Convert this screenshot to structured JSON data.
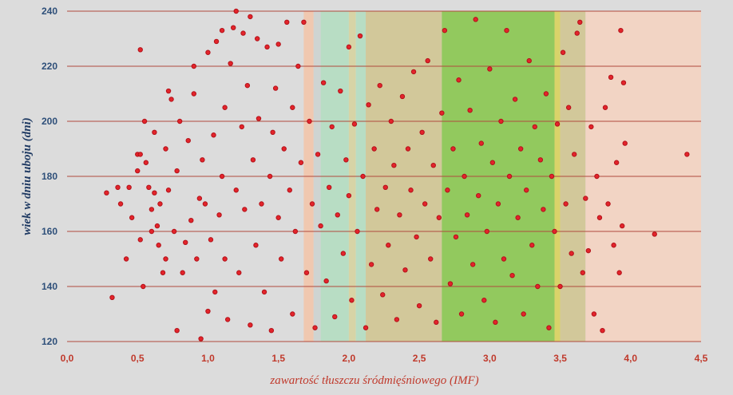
{
  "chart_data": {
    "type": "scatter",
    "title": "",
    "xlabel": "zawartość tłuszczu śródmięśniowego  (IMF)",
    "ylabel": "wiek w dniu uboju (dni)",
    "xlim": [
      0,
      4.5
    ],
    "ylim": [
      120,
      240
    ],
    "xticks": [
      0,
      0.5,
      1.0,
      1.5,
      2.0,
      2.5,
      3.0,
      3.5,
      4.0,
      4.5
    ],
    "xtick_labels": [
      "0,0",
      "0,5",
      "1,0",
      "1,5",
      "2,0",
      "2,5",
      "3,0",
      "3,5",
      "4,0",
      "4,5"
    ],
    "yticks": [
      120,
      140,
      160,
      180,
      200,
      220,
      240
    ],
    "ytick_labels": [
      "120",
      "140",
      "160",
      "180",
      "200",
      "220",
      "240"
    ],
    "grid": "horizontal",
    "colors": {
      "background": "#dcdcdc",
      "grid": "#b04a3e",
      "marker": "#e3242b",
      "marker_edge": "#b3121a",
      "axis_tick_y": "#2e4f79",
      "axis_tick_x": "#c0392b"
    },
    "background_bands": [
      {
        "x0": 1.68,
        "x1": 1.75,
        "color": "#f0c8b0"
      },
      {
        "x0": 1.75,
        "x1": 1.8,
        "color": "#cfd4d2"
      },
      {
        "x0": 1.8,
        "x1": 2.0,
        "color": "#b8ddc4"
      },
      {
        "x0": 2.0,
        "x1": 2.05,
        "color": "#d7d4a6"
      },
      {
        "x0": 2.05,
        "x1": 2.12,
        "color": "#b8ddc4"
      },
      {
        "x0": 2.12,
        "x1": 2.66,
        "color": "#d2c89a"
      },
      {
        "x0": 2.66,
        "x1": 3.46,
        "color": "#92c95e"
      },
      {
        "x0": 3.46,
        "x1": 3.5,
        "color": "#d9d36a"
      },
      {
        "x0": 3.5,
        "x1": 3.68,
        "color": "#d2c89a"
      },
      {
        "x0": 3.68,
        "x1": 4.5,
        "color": "#f2d4c4"
      }
    ],
    "series": [
      {
        "name": "IMF vs wiek",
        "marker": "circle",
        "points": [
          [
            0.28,
            174
          ],
          [
            0.32,
            136
          ],
          [
            0.36,
            176
          ],
          [
            0.38,
            170
          ],
          [
            0.42,
            150
          ],
          [
            0.44,
            176
          ],
          [
            0.46,
            165
          ],
          [
            0.5,
            188
          ],
          [
            0.5,
            182
          ],
          [
            0.52,
            188
          ],
          [
            0.52,
            226
          ],
          [
            0.52,
            157
          ],
          [
            0.54,
            140
          ],
          [
            0.55,
            200
          ],
          [
            0.56,
            185
          ],
          [
            0.58,
            176
          ],
          [
            0.6,
            160
          ],
          [
            0.6,
            168
          ],
          [
            0.62,
            174
          ],
          [
            0.62,
            196
          ],
          [
            0.64,
            162
          ],
          [
            0.65,
            155
          ],
          [
            0.66,
            170
          ],
          [
            0.68,
            145
          ],
          [
            0.7,
            150
          ],
          [
            0.7,
            190
          ],
          [
            0.72,
            211
          ],
          [
            0.72,
            175
          ],
          [
            0.74,
            208
          ],
          [
            0.76,
            160
          ],
          [
            0.78,
            124
          ],
          [
            0.78,
            182
          ],
          [
            0.8,
            200
          ],
          [
            0.82,
            145
          ],
          [
            0.84,
            156
          ],
          [
            0.86,
            193
          ],
          [
            0.88,
            164
          ],
          [
            0.9,
            210
          ],
          [
            0.9,
            220
          ],
          [
            0.92,
            150
          ],
          [
            0.94,
            172
          ],
          [
            0.95,
            121
          ],
          [
            0.96,
            186
          ],
          [
            0.98,
            170
          ],
          [
            1.0,
            225
          ],
          [
            1.0,
            131
          ],
          [
            1.02,
            157
          ],
          [
            1.04,
            195
          ],
          [
            1.05,
            138
          ],
          [
            1.06,
            229
          ],
          [
            1.08,
            166
          ],
          [
            1.1,
            233
          ],
          [
            1.1,
            180
          ],
          [
            1.12,
            150
          ],
          [
            1.12,
            205
          ],
          [
            1.14,
            128
          ],
          [
            1.16,
            221
          ],
          [
            1.18,
            234
          ],
          [
            1.2,
            240
          ],
          [
            1.2,
            175
          ],
          [
            1.22,
            145
          ],
          [
            1.24,
            198
          ],
          [
            1.25,
            232
          ],
          [
            1.26,
            168
          ],
          [
            1.28,
            213
          ],
          [
            1.3,
            238
          ],
          [
            1.3,
            126
          ],
          [
            1.32,
            186
          ],
          [
            1.34,
            155
          ],
          [
            1.35,
            230
          ],
          [
            1.36,
            201
          ],
          [
            1.38,
            170
          ],
          [
            1.4,
            138
          ],
          [
            1.42,
            227
          ],
          [
            1.44,
            180
          ],
          [
            1.45,
            124
          ],
          [
            1.46,
            196
          ],
          [
            1.48,
            212
          ],
          [
            1.5,
            165
          ],
          [
            1.5,
            228
          ],
          [
            1.52,
            150
          ],
          [
            1.54,
            190
          ],
          [
            1.56,
            236
          ],
          [
            1.58,
            175
          ],
          [
            1.6,
            205
          ],
          [
            1.6,
            130
          ],
          [
            1.62,
            160
          ],
          [
            1.64,
            220
          ],
          [
            1.66,
            185
          ],
          [
            1.68,
            236
          ],
          [
            1.7,
            145
          ],
          [
            1.72,
            200
          ],
          [
            1.74,
            170
          ],
          [
            1.76,
            125
          ],
          [
            1.78,
            188
          ],
          [
            1.8,
            162
          ],
          [
            1.82,
            214
          ],
          [
            1.84,
            142
          ],
          [
            1.86,
            176
          ],
          [
            1.88,
            198
          ],
          [
            1.9,
            129
          ],
          [
            1.92,
            166
          ],
          [
            1.94,
            211
          ],
          [
            1.96,
            152
          ],
          [
            1.98,
            186
          ],
          [
            2.0,
            227
          ],
          [
            2.0,
            173
          ],
          [
            2.02,
            135
          ],
          [
            2.04,
            199
          ],
          [
            2.06,
            160
          ],
          [
            2.08,
            231
          ],
          [
            2.1,
            180
          ],
          [
            2.12,
            125
          ],
          [
            2.14,
            206
          ],
          [
            2.16,
            148
          ],
          [
            2.18,
            190
          ],
          [
            2.2,
            168
          ],
          [
            2.22,
            213
          ],
          [
            2.24,
            137
          ],
          [
            2.26,
            176
          ],
          [
            2.28,
            155
          ],
          [
            2.3,
            200
          ],
          [
            2.32,
            184
          ],
          [
            2.34,
            128
          ],
          [
            2.36,
            166
          ],
          [
            2.38,
            209
          ],
          [
            2.4,
            146
          ],
          [
            2.42,
            190
          ],
          [
            2.44,
            175
          ],
          [
            2.46,
            218
          ],
          [
            2.48,
            158
          ],
          [
            2.5,
            133
          ],
          [
            2.52,
            196
          ],
          [
            2.54,
            170
          ],
          [
            2.56,
            222
          ],
          [
            2.58,
            150
          ],
          [
            2.6,
            184
          ],
          [
            2.62,
            127
          ],
          [
            2.64,
            165
          ],
          [
            2.66,
            203
          ],
          [
            2.68,
            233
          ],
          [
            2.7,
            175
          ],
          [
            2.72,
            141
          ],
          [
            2.74,
            190
          ],
          [
            2.76,
            158
          ],
          [
            2.78,
            215
          ],
          [
            2.8,
            130
          ],
          [
            2.82,
            180
          ],
          [
            2.84,
            166
          ],
          [
            2.86,
            204
          ],
          [
            2.88,
            148
          ],
          [
            2.9,
            237
          ],
          [
            2.92,
            173
          ],
          [
            2.94,
            192
          ],
          [
            2.96,
            135
          ],
          [
            2.98,
            160
          ],
          [
            3.0,
            219
          ],
          [
            3.02,
            185
          ],
          [
            3.04,
            127
          ],
          [
            3.06,
            170
          ],
          [
            3.08,
            200
          ],
          [
            3.1,
            150
          ],
          [
            3.12,
            233
          ],
          [
            3.14,
            180
          ],
          [
            3.16,
            144
          ],
          [
            3.18,
            208
          ],
          [
            3.2,
            165
          ],
          [
            3.22,
            190
          ],
          [
            3.24,
            130
          ],
          [
            3.26,
            175
          ],
          [
            3.28,
            222
          ],
          [
            3.3,
            155
          ],
          [
            3.32,
            198
          ],
          [
            3.34,
            140
          ],
          [
            3.36,
            186
          ],
          [
            3.38,
            168
          ],
          [
            3.4,
            210
          ],
          [
            3.42,
            125
          ],
          [
            3.44,
            180
          ],
          [
            3.46,
            160
          ],
          [
            3.48,
            199
          ],
          [
            3.5,
            140
          ],
          [
            3.52,
            225
          ],
          [
            3.54,
            170
          ],
          [
            3.56,
            205
          ],
          [
            3.58,
            152
          ],
          [
            3.6,
            188
          ],
          [
            3.62,
            232
          ],
          [
            3.64,
            236
          ],
          [
            3.66,
            145
          ],
          [
            3.68,
            172
          ],
          [
            3.7,
            153
          ],
          [
            3.72,
            198
          ],
          [
            3.74,
            130
          ],
          [
            3.76,
            180
          ],
          [
            3.78,
            165
          ],
          [
            3.8,
            124
          ],
          [
            3.82,
            205
          ],
          [
            3.84,
            170
          ],
          [
            3.86,
            216
          ],
          [
            3.88,
            155
          ],
          [
            3.9,
            185
          ],
          [
            3.92,
            145
          ],
          [
            3.93,
            233
          ],
          [
            3.94,
            162
          ],
          [
            3.95,
            214
          ],
          [
            3.96,
            192
          ],
          [
            4.17,
            159
          ],
          [
            4.4,
            188
          ]
        ]
      }
    ]
  }
}
